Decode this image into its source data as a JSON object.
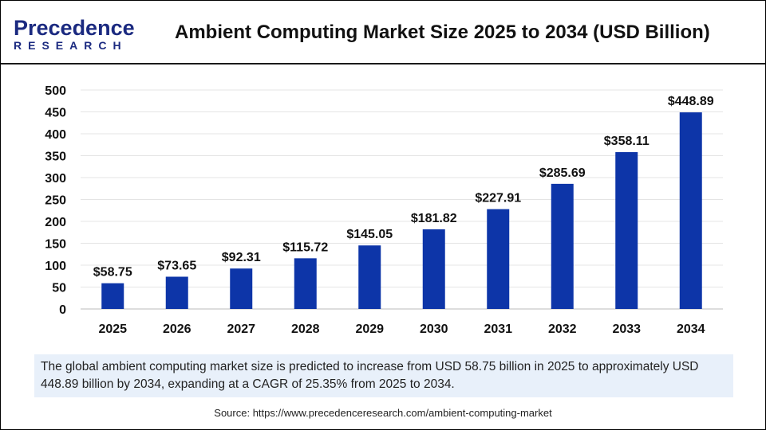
{
  "logo": {
    "line1": "Precedence",
    "line2": "RESEARCH"
  },
  "title": "Ambient Computing Market Size 2025 to 2034 (USD Billion)",
  "note": "The global ambient computing market size is predicted to increase from USD 58.75 billion in 2025 to approximately USD 448.89 billion by 2034, expanding at a CAGR of 25.35% from 2025 to 2034.",
  "source": "Source: https://www.precedenceresearch.com/ambient-computing-market",
  "chart_data": {
    "type": "bar",
    "categories": [
      "2025",
      "2026",
      "2027",
      "2028",
      "2029",
      "2030",
      "2031",
      "2032",
      "2033",
      "2034"
    ],
    "values": [
      58.75,
      73.65,
      92.31,
      115.72,
      145.05,
      181.82,
      227.91,
      285.69,
      358.11,
      448.89
    ],
    "data_labels": [
      "$58.75",
      "$73.65",
      "$92.31",
      "$115.72",
      "$145.05",
      "$181.82",
      "$227.91",
      "$285.69",
      "$358.11",
      "$448.89"
    ],
    "ylim": [
      0,
      500
    ],
    "yticks": [
      0,
      50,
      100,
      150,
      200,
      250,
      300,
      350,
      400,
      450,
      500
    ],
    "grid": true,
    "bar_color": "#0d35a8"
  }
}
